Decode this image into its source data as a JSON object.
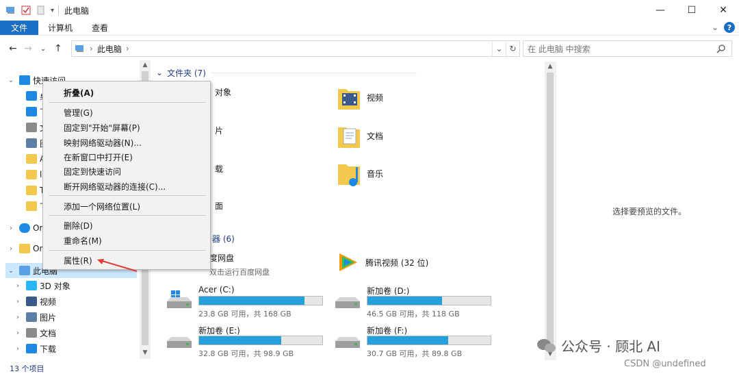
{
  "titlebar": {
    "title": "此电脑",
    "minimize": "—",
    "maximize": "☐",
    "close": "✕",
    "qa_dropdown": "▾"
  },
  "ribbon": {
    "tabs": [
      "文件",
      "计算机",
      "查看"
    ],
    "expand": "⌄",
    "help": "?"
  },
  "address": {
    "back": "←",
    "forward": "→",
    "recent": "⌄",
    "up": "↑",
    "chevron": "›",
    "location": "此电脑",
    "dropdown": "⌄",
    "refresh": "↻",
    "search_placeholder": "在 此电脑 中搜索"
  },
  "nav": {
    "items": [
      {
        "label": "快速访问",
        "chev": "⌄",
        "icon": "star-icon"
      },
      {
        "label": "桌",
        "chev": "",
        "icon": "desktop-icon"
      },
      {
        "label": "下",
        "chev": "",
        "icon": "download-icon"
      },
      {
        "label": "文",
        "chev": "",
        "icon": "document-icon"
      },
      {
        "label": "图",
        "chev": "",
        "icon": "picture-icon"
      },
      {
        "label": "A",
        "chev": "",
        "icon": "folder-icon"
      },
      {
        "label": "lo",
        "chev": "",
        "icon": "folder-icon"
      },
      {
        "label": "Te",
        "chev": "",
        "icon": "folder-icon"
      },
      {
        "label": "下",
        "chev": "",
        "icon": "folder-icon"
      },
      {
        "label": "On",
        "chev": "›",
        "icon": "cloud-icon"
      },
      {
        "label": "On",
        "chev": "›",
        "icon": "folder-icon"
      },
      {
        "label": "此电脑",
        "chev": "⌄",
        "icon": "computer-icon"
      },
      {
        "label": "3D 对象",
        "chev": "›",
        "icon": "cube-icon"
      },
      {
        "label": "视频",
        "chev": "›",
        "icon": "video-icon"
      },
      {
        "label": "图片",
        "chev": "›",
        "icon": "picture-icon"
      },
      {
        "label": "文档",
        "chev": "›",
        "icon": "document-icon"
      },
      {
        "label": "下载",
        "chev": "›",
        "icon": "download-icon"
      }
    ]
  },
  "content": {
    "folders_header": "文件夹 (7)",
    "group_chev": "⌄",
    "folders": [
      {
        "name": "对象"
      },
      {
        "name": "视频"
      },
      {
        "name": "片"
      },
      {
        "name": "文档"
      },
      {
        "name": "载"
      },
      {
        "name": "音乐"
      },
      {
        "name": "面"
      }
    ],
    "devices_header": "器 (6)",
    "baidu": {
      "name": "度网盘",
      "sub": "双击运行百度网盘"
    },
    "tencent": {
      "name": "腾讯视频 (32 位)"
    },
    "drives": [
      {
        "name": "Acer (C:)",
        "info": "23.8 GB 可用，共 168 GB",
        "used": 0.858
      },
      {
        "name": "新加卷 (D:)",
        "info": "46.5 GB 可用，共 118 GB",
        "used": 0.606
      },
      {
        "name": "新加卷 (E:)",
        "info": "32.8 GB 可用，共 98.9 GB",
        "used": 0.668
      },
      {
        "name": "新加卷 (F:)",
        "info": "30.7 GB 可用，共 89.8 GB",
        "used": 0.658
      }
    ]
  },
  "preview": {
    "text": "选择要预览的文件。"
  },
  "status": {
    "count": "13 个项目"
  },
  "context_menu": {
    "items": [
      "折叠(A)",
      "管理(G)",
      "固定到\"开始\"屏幕(P)",
      "映射网络驱动器(N)...",
      "在新窗口中打开(E)",
      "固定到快速访问",
      "断开网络驱动器的连接(C)...",
      "添加一个网络位置(L)",
      "删除(D)",
      "重命名(M)",
      "属性(R)"
    ]
  },
  "watermark": {
    "main": "公众号 · 顾北 AI",
    "csdn": "CSDN @undefined"
  },
  "colors": {
    "accent": "#1a6ec6",
    "drive_fill": "#26a0da",
    "selection": "#cce8ff",
    "arrow": "#e53935"
  }
}
